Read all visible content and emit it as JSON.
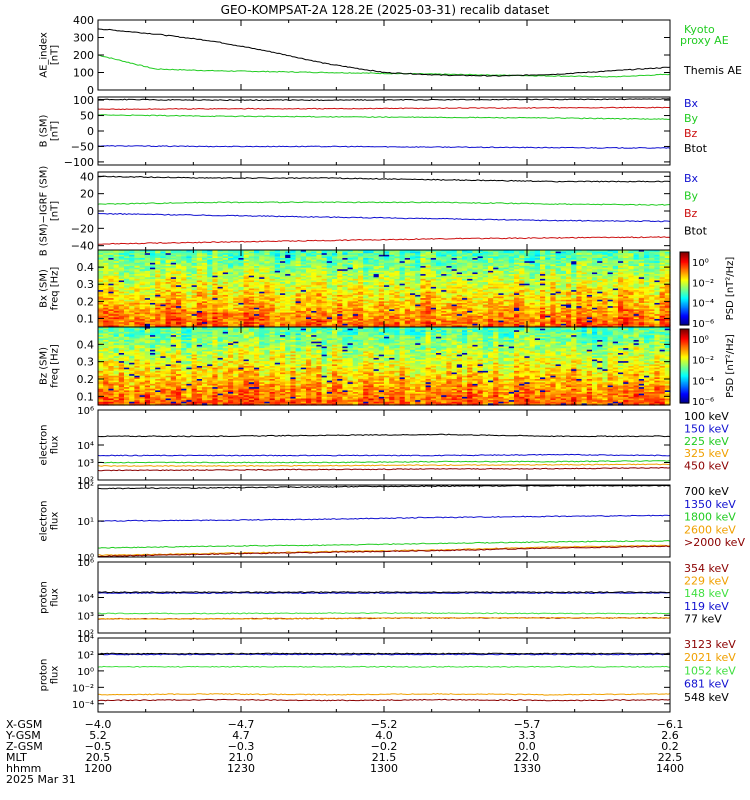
{
  "title": "GEO-KOMPSAT-2A 128.2E (2025-03-31) recalib dataset",
  "colors": {
    "black": "#000000",
    "green": "#22cc22",
    "blue": "#1010d0",
    "red": "#cc1010",
    "orange": "#f0a000",
    "darkred": "#8b0000",
    "lightgreen": "#40e040"
  },
  "chart_data": [
    {
      "type": "line",
      "panel": "ae",
      "ylabel": "AE_index [nT]",
      "ylim": [
        0,
        400
      ],
      "yticks": [
        "400",
        "300",
        "200",
        "100",
        "0"
      ],
      "x_hours": [
        12.0,
        12.2,
        12.4,
        12.6,
        12.8,
        13.0,
        13.2,
        13.4,
        13.6,
        13.8,
        14.0
      ],
      "series": [
        {
          "name": "Kyoto",
          "name2": "proxy AE",
          "color": "green",
          "values": [
            200,
            120,
            110,
            105,
            100,
            95,
            90,
            85,
            80,
            75,
            90
          ]
        },
        {
          "name": "Themis AE",
          "color": "black",
          "values": [
            350,
            320,
            280,
            220,
            150,
            100,
            85,
            80,
            90,
            110,
            130
          ]
        }
      ]
    },
    {
      "type": "line",
      "panel": "bsm",
      "ylabel": "B (SM) [nT]",
      "ylim": [
        -110,
        110
      ],
      "yticks": [
        "100",
        "50",
        "0",
        "−50",
        "−100"
      ],
      "x_hours": [
        12.0,
        12.4,
        12.8,
        13.2,
        13.6,
        14.0
      ],
      "series": [
        {
          "name": "Bx",
          "color": "blue",
          "values": [
            -48,
            -50,
            -50,
            -52,
            -54,
            -55
          ]
        },
        {
          "name": "By",
          "color": "green",
          "values": [
            52,
            48,
            46,
            44,
            42,
            38
          ]
        },
        {
          "name": "Bz",
          "color": "red",
          "values": [
            70,
            72,
            72,
            74,
            75,
            76
          ]
        },
        {
          "name": "Btot",
          "color": "black",
          "values": [
            102,
            100,
            100,
            101,
            102,
            103
          ]
        }
      ]
    },
    {
      "type": "line",
      "panel": "bigrf",
      "ylabel": "B (SM)−IGRF (SM) [nT]",
      "ylim": [
        -45,
        45
      ],
      "yticks": [
        "40",
        "20",
        "0",
        "−20",
        "−40"
      ],
      "x_hours": [
        12.0,
        12.4,
        12.8,
        13.2,
        13.6,
        14.0
      ],
      "series": [
        {
          "name": "Bx",
          "color": "blue",
          "values": [
            -3,
            -5,
            -7,
            -9,
            -11,
            -12
          ]
        },
        {
          "name": "By",
          "color": "green",
          "values": [
            8,
            10,
            10,
            10,
            8,
            7
          ]
        },
        {
          "name": "Bz",
          "color": "red",
          "values": [
            -38,
            -36,
            -34,
            -32,
            -31,
            -30
          ]
        },
        {
          "name": "Btot",
          "color": "black",
          "values": [
            40,
            38,
            38,
            36,
            34,
            34
          ]
        }
      ]
    },
    {
      "type": "heatmap",
      "panel": "spec1",
      "ylabel": "Bx (SM)",
      "ylabel2": "freq [Hz]",
      "yticks": [
        "0.4",
        "0.3",
        "0.2",
        "0.1"
      ],
      "ylim": [
        0.05,
        0.5
      ],
      "colorbar_label": "PSD [nT²/Hz]",
      "colorbar_ticks": [
        "10⁰",
        "10⁻²",
        "10⁻⁴",
        "10⁻⁶"
      ]
    },
    {
      "type": "heatmap",
      "panel": "spec2",
      "ylabel": "Bz (SM)",
      "ylabel2": "freq [Hz]",
      "yticks": [
        "0.4",
        "0.3",
        "0.2",
        "0.1"
      ],
      "ylim": [
        0.05,
        0.5
      ],
      "colorbar_label": "PSD [nT²/Hz]",
      "colorbar_ticks": [
        "10⁰",
        "10⁻²",
        "10⁻⁴",
        "10⁻⁶"
      ]
    },
    {
      "type": "line",
      "panel": "eflux1",
      "ylabel": "electron flux",
      "yscale": "log",
      "ylim_log10": [
        2,
        6
      ],
      "yticks": [
        "10⁶",
        "10⁴",
        "10³",
        "10²"
      ],
      "x_hours": [
        12.0,
        12.4,
        12.8,
        13.2,
        13.6,
        14.0
      ],
      "series": [
        {
          "name": "100 keV",
          "color": "black",
          "log10": [
            4.5,
            4.5,
            4.55,
            4.6,
            4.5,
            4.5
          ]
        },
        {
          "name": "150 keV",
          "color": "blue",
          "log10": [
            3.4,
            3.4,
            3.4,
            3.4,
            3.45,
            3.4
          ]
        },
        {
          "name": "225 keV",
          "color": "green",
          "log10": [
            3.0,
            3.0,
            3.0,
            3.05,
            3.05,
            3.1
          ]
        },
        {
          "name": "325 keV",
          "color": "orange",
          "log10": [
            2.8,
            2.8,
            2.82,
            2.85,
            2.87,
            2.9
          ]
        },
        {
          "name": "450 keV",
          "color": "darkred",
          "log10": [
            2.55,
            2.57,
            2.6,
            2.63,
            2.65,
            2.7
          ]
        }
      ]
    },
    {
      "type": "line",
      "panel": "eflux2",
      "ylabel": "electron flux",
      "yscale": "log",
      "ylim_log10": [
        0,
        2
      ],
      "yticks": [
        "10²",
        "10¹",
        "10⁰"
      ],
      "x_hours": [
        12.0,
        12.4,
        12.8,
        13.2,
        13.6,
        14.0
      ],
      "series": [
        {
          "name": "700 keV",
          "color": "black",
          "log10": [
            1.9,
            1.92,
            1.95,
            1.97,
            1.98,
            1.98
          ]
        },
        {
          "name": "1350 keV",
          "color": "blue",
          "log10": [
            1.0,
            1.02,
            1.05,
            1.1,
            1.13,
            1.15
          ]
        },
        {
          "name": "1800 keV",
          "color": "green",
          "log10": [
            0.25,
            0.3,
            0.33,
            0.38,
            0.42,
            0.45
          ]
        },
        {
          "name": "2600 keV",
          "color": "orange",
          "log10": [
            0.05,
            0.1,
            0.15,
            0.2,
            0.28,
            0.32
          ]
        },
        {
          "name": ">2000 keV",
          "color": "darkred",
          "log10": [
            0.02,
            0.08,
            0.13,
            0.18,
            0.25,
            0.3
          ]
        }
      ]
    },
    {
      "type": "line",
      "panel": "pflux1",
      "ylabel": "proton flux",
      "yscale": "log",
      "ylim_log10": [
        2,
        6
      ],
      "yticks": [
        "10⁶",
        "10⁴",
        "10³",
        "10²"
      ],
      "x_hours": [
        12.0,
        12.4,
        12.8,
        13.2,
        13.6,
        14.0
      ],
      "series": [
        {
          "name": "354 keV",
          "color": "darkred",
          "log10": [
            2.8,
            2.8,
            2.82,
            2.85,
            2.85,
            2.85
          ]
        },
        {
          "name": "229 keV",
          "color": "orange",
          "log10": [
            2.8,
            2.8,
            2.82,
            2.85,
            2.85,
            2.85
          ]
        },
        {
          "name": "148 keV",
          "color": "lightgreen",
          "log10": [
            3.1,
            3.1,
            3.12,
            3.12,
            3.1,
            3.1
          ]
        },
        {
          "name": "119 keV",
          "color": "blue",
          "log10": [
            4.25,
            4.25,
            4.25,
            4.25,
            4.25,
            4.25
          ]
        },
        {
          "name": "77 keV",
          "color": "black",
          "log10": [
            4.3,
            4.3,
            4.3,
            4.3,
            4.3,
            4.3
          ]
        }
      ]
    },
    {
      "type": "line",
      "panel": "pflux2",
      "ylabel": "proton flux",
      "yscale": "log",
      "ylim_log10": [
        -5,
        4
      ],
      "yticks": [
        "10⁴",
        "10²",
        "10⁰",
        "10⁻²",
        "10⁻⁴"
      ],
      "x_hours": [
        12.0,
        12.4,
        12.8,
        13.2,
        13.6,
        14.0
      ],
      "series": [
        {
          "name": "3123 keV",
          "color": "darkred",
          "log10": [
            -3.6,
            -3.5,
            -3.6,
            -3.5,
            -3.6,
            -3.5
          ]
        },
        {
          "name": "2021 keV",
          "color": "orange",
          "log10": [
            -2.9,
            -2.8,
            -2.9,
            -2.8,
            -2.9,
            -2.8
          ]
        },
        {
          "name": "1052 keV",
          "color": "lightgreen",
          "log10": [
            0.5,
            0.5,
            0.5,
            0.5,
            0.5,
            0.5
          ]
        },
        {
          "name": "681 keV",
          "color": "blue",
          "log10": [
            2.0,
            2.0,
            2.0,
            2.0,
            2.0,
            2.0
          ]
        },
        {
          "name": "548 keV",
          "color": "black",
          "log10": [
            2.1,
            2.1,
            2.1,
            2.1,
            2.1,
            2.1
          ]
        }
      ]
    }
  ],
  "xaxis": {
    "rows": [
      {
        "label": "X-GSM",
        "values": [
          "−4.0",
          "−4.7",
          "−5.2",
          "−5.7",
          "−6.1"
        ]
      },
      {
        "label": "Y-GSM",
        "values": [
          "5.2",
          "4.7",
          "4.0",
          "3.3",
          "2.6"
        ]
      },
      {
        "label": "Z-GSM",
        "values": [
          "−0.5",
          "−0.3",
          "−0.2",
          "0.0",
          "0.2"
        ]
      },
      {
        "label": "MLT",
        "values": [
          "20.5",
          "21.0",
          "21.5",
          "22.0",
          "22.5"
        ]
      },
      {
        "label": "hhmm",
        "values": [
          "1200",
          "1230",
          "1300",
          "1330",
          "1400"
        ]
      }
    ],
    "date": "2025 Mar 31"
  }
}
